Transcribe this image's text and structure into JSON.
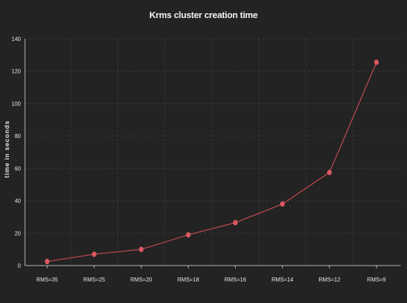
{
  "chart_data": {
    "type": "line",
    "title": "Krms cluster creation time",
    "xlabel": "",
    "ylabel": "time in seconds",
    "categories": [
      "RMS=35",
      "RMS=25",
      "RMS=20",
      "RMS=18",
      "RMS=16",
      "RMS=14",
      "RMS=12",
      "RMS=9"
    ],
    "series": [
      {
        "values": [
          2.5,
          7,
          10,
          19,
          26.5,
          38,
          57.5,
          125.5
        ]
      }
    ],
    "ylim": [
      0,
      140
    ],
    "yticks": [
      0,
      20,
      40,
      60,
      80,
      100,
      120,
      140
    ],
    "grid": true,
    "legend": "none"
  },
  "colors": {
    "background": "#232323",
    "line": "#c0484f",
    "marker": "#e0555e",
    "axis": "#bdbdbd",
    "grid": "#3a3a3a",
    "text": "#e8e8e8"
  }
}
